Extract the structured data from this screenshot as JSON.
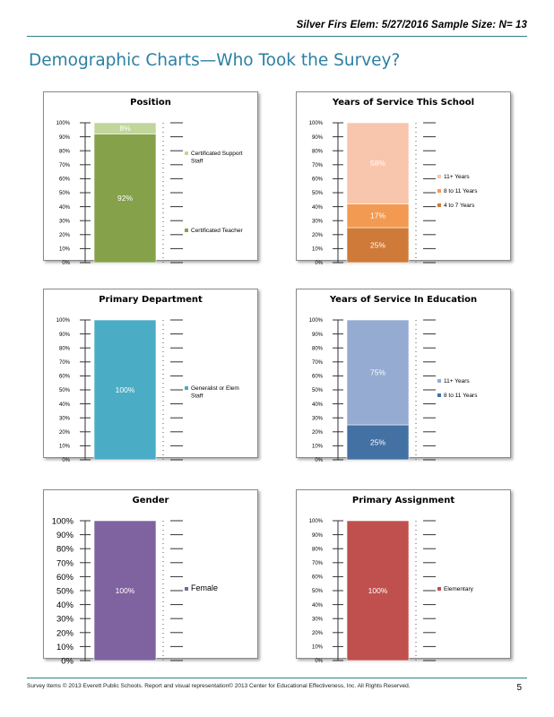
{
  "header": {
    "text": "Silver Firs Elem: 5/27/2016  Sample Size: N= 13"
  },
  "page_title": "Demographic Charts—Who Took the Survey?",
  "footer": {
    "text": "Survey Items © 2013 Everett Public Schools. Report and visual representation© 2013 Center for Educational Effectiveness, Inc. All Rights Reserved.",
    "page_number": "5"
  },
  "chart_data": [
    {
      "type": "bar",
      "stacked": true,
      "title": "Position",
      "y_ticks": [
        "0%",
        "10%",
        "20%",
        "30%",
        "40%",
        "50%",
        "60%",
        "70%",
        "80%",
        "90%",
        "100%"
      ],
      "ylim": [
        0,
        100
      ],
      "series": [
        {
          "name": "Certificated Teacher",
          "value": 92,
          "label": "92%",
          "color": "#85a14a"
        },
        {
          "name": "Certificated Support Staff",
          "value": 8,
          "label": "8%",
          "color": "#c1d69b"
        }
      ],
      "legend": [
        {
          "name": "Certificated Support Staff",
          "color": "#c1d69b"
        },
        {
          "name": "Certificated Teacher",
          "color": "#85a14a"
        }
      ]
    },
    {
      "type": "bar",
      "stacked": true,
      "title": "Years of Service This School",
      "y_ticks": [
        "0%",
        "10%",
        "20%",
        "30%",
        "40%",
        "50%",
        "60%",
        "70%",
        "80%",
        "90%",
        "100%"
      ],
      "ylim": [
        0,
        100
      ],
      "series": [
        {
          "name": "4 to 7 Years",
          "value": 25,
          "label": "25%",
          "color": "#cf7a38"
        },
        {
          "name": "8 to 11 Years",
          "value": 17,
          "label": "17%",
          "color": "#f39a52"
        },
        {
          "name": "11+ Years",
          "value": 58,
          "label": "58%",
          "color": "#f8c5ad"
        }
      ],
      "legend": [
        {
          "name": "11+ Years",
          "color": "#f8c5ad"
        },
        {
          "name": "8 to 11 Years",
          "color": "#f39a52"
        },
        {
          "name": "4 to 7 Years",
          "color": "#cf7a38"
        }
      ]
    },
    {
      "type": "bar",
      "stacked": true,
      "title": "Primary Department",
      "y_ticks": [
        "0%",
        "10%",
        "20%",
        "30%",
        "40%",
        "50%",
        "60%",
        "70%",
        "80%",
        "90%",
        "100%"
      ],
      "ylim": [
        0,
        100
      ],
      "series": [
        {
          "name": "Generalist or Elem Staff",
          "value": 100,
          "label": "100%",
          "color": "#4aacc5"
        }
      ],
      "legend": [
        {
          "name": "Generalist or Elem Staff",
          "color": "#4aacc5"
        }
      ]
    },
    {
      "type": "bar",
      "stacked": true,
      "title": "Years of Service In Education",
      "y_ticks": [
        "0%",
        "10%",
        "20%",
        "30%",
        "40%",
        "50%",
        "60%",
        "70%",
        "80%",
        "90%",
        "100%"
      ],
      "ylim": [
        0,
        100
      ],
      "series": [
        {
          "name": "8 to 11 Years",
          "value": 25,
          "label": "25%",
          "color": "#4471a4"
        },
        {
          "name": "11+ Years",
          "value": 75,
          "label": "75%",
          "color": "#95abd1"
        }
      ],
      "legend": [
        {
          "name": "11+ Years",
          "color": "#95abd1"
        },
        {
          "name": "8 to 11 Years",
          "color": "#4471a4"
        }
      ]
    },
    {
      "type": "bar",
      "stacked": true,
      "title": "Gender",
      "y_ticks": [
        "0%",
        "10%",
        "20%",
        "30%",
        "40%",
        "50%",
        "60%",
        "70%",
        "80%",
        "90%",
        "100%"
      ],
      "ylim": [
        0,
        100
      ],
      "large_ticks": true,
      "series": [
        {
          "name": "Female",
          "value": 100,
          "label": "100%",
          "color": "#7f62a0"
        }
      ],
      "legend": [
        {
          "name": "Female",
          "color": "#7f62a0"
        }
      ]
    },
    {
      "type": "bar",
      "stacked": true,
      "title": "Primary Assignment",
      "y_ticks": [
        "0%",
        "10%",
        "20%",
        "30%",
        "40%",
        "50%",
        "60%",
        "70%",
        "80%",
        "90%",
        "100%"
      ],
      "ylim": [
        0,
        100
      ],
      "series": [
        {
          "name": "Elementary",
          "value": 100,
          "label": "100%",
          "color": "#c0504d"
        }
      ],
      "legend": [
        {
          "name": "Elementary",
          "color": "#c0504d"
        }
      ]
    }
  ]
}
